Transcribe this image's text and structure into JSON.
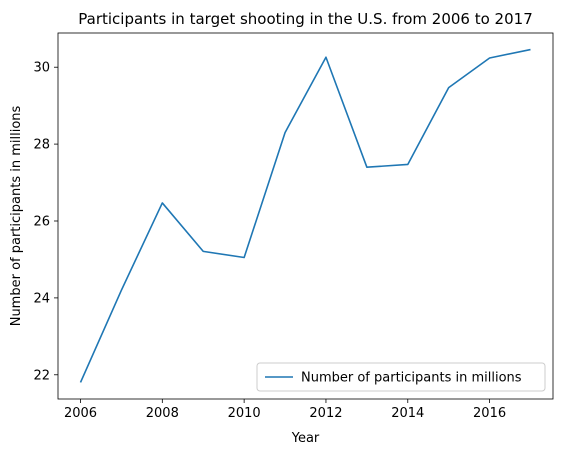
{
  "chart_data": {
    "type": "line",
    "title": "Participants in target shooting in the U.S. from 2006 to 2017",
    "xlabel": "Year",
    "ylabel": "Number of participants in millions",
    "x": [
      2006,
      2007,
      2008,
      2009,
      2010,
      2011,
      2012,
      2013,
      2014,
      2015,
      2016,
      2017
    ],
    "series": [
      {
        "name": "Number of participants in millions",
        "values": [
          21.8,
          24.2,
          26.47,
          25.21,
          25.05,
          28.3,
          30.26,
          27.4,
          27.47,
          29.47,
          30.24,
          30.46
        ],
        "color": "#1f77b4"
      }
    ],
    "xlim": [
      2005.45,
      2017.55
    ],
    "ylim": [
      21.37,
      30.89
    ],
    "xticks": [
      2006,
      2008,
      2010,
      2012,
      2014,
      2016
    ],
    "yticks": [
      22,
      24,
      26,
      28,
      30
    ],
    "grid": false,
    "legend": "lower right"
  }
}
